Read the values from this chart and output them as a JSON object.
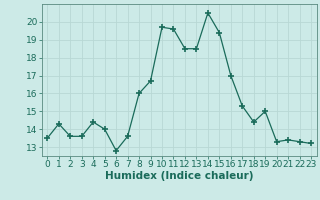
{
  "x": [
    0,
    1,
    2,
    3,
    4,
    5,
    6,
    7,
    8,
    9,
    10,
    11,
    12,
    13,
    14,
    15,
    16,
    17,
    18,
    19,
    20,
    21,
    22,
    23
  ],
  "y": [
    13.5,
    14.3,
    13.6,
    13.6,
    14.4,
    14.0,
    12.8,
    13.6,
    16.0,
    16.7,
    19.7,
    19.6,
    18.5,
    18.5,
    20.5,
    19.4,
    17.0,
    15.3,
    14.4,
    15.0,
    13.3,
    13.4,
    13.3,
    13.2
  ],
  "line_color": "#1a6b5a",
  "marker": "+",
  "marker_size": 4,
  "bg_color": "#cceae7",
  "grid_color": "#b8d8d4",
  "xlabel": "Humidex (Indice chaleur)",
  "xlabel_fontsize": 7.5,
  "tick_fontsize": 6.5,
  "ylim": [
    12.5,
    21.0
  ],
  "xlim": [
    -0.5,
    23.5
  ],
  "yticks": [
    13,
    14,
    15,
    16,
    17,
    18,
    19,
    20
  ],
  "xticks": [
    0,
    1,
    2,
    3,
    4,
    5,
    6,
    7,
    8,
    9,
    10,
    11,
    12,
    13,
    14,
    15,
    16,
    17,
    18,
    19,
    20,
    21,
    22,
    23
  ]
}
